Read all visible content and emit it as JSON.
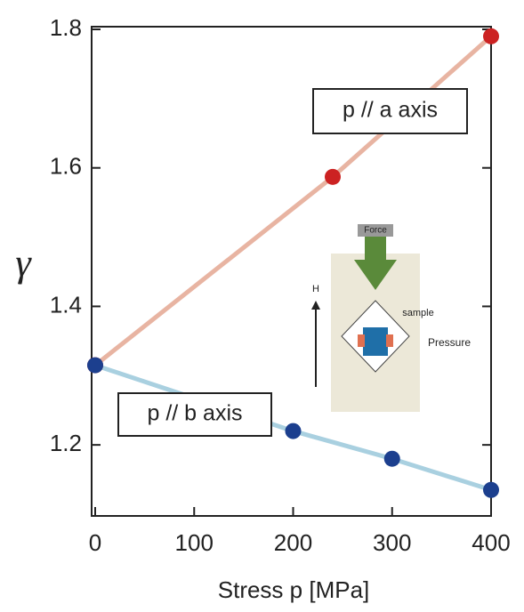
{
  "chart_data": {
    "type": "line",
    "x_label": "Stress p [MPa]",
    "y_label": "γ",
    "series": [
      {
        "name": "p // a axis",
        "color": "#e8b4a2",
        "marker_color": "#cc2222",
        "x": [
          0,
          240,
          400
        ],
        "values": [
          1.315,
          1.587,
          1.79
        ]
      },
      {
        "name": "p // b axis",
        "color": "#a9d0e0",
        "marker_color": "#1c3f8e",
        "x": [
          0,
          200,
          300,
          400
        ],
        "values": [
          1.315,
          1.22,
          1.18,
          1.135
        ]
      }
    ],
    "xlim": [
      0,
      400
    ],
    "xticks": [
      0,
      100,
      200,
      300,
      400
    ],
    "ylim": [
      1.1,
      1.8
    ],
    "yticks": [
      1.2,
      1.4,
      1.6,
      1.8
    ],
    "grid": false,
    "inset_labels": [
      "Force",
      "H",
      "sample",
      "Pressure"
    ]
  }
}
